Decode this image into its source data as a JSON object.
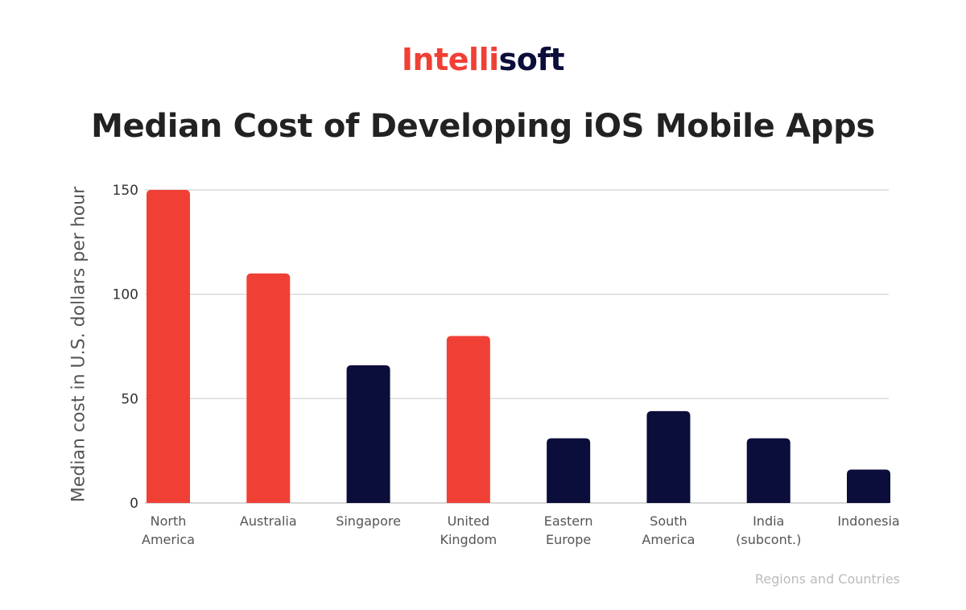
{
  "brand": {
    "part1": "Intelli",
    "part2": "soft",
    "color1": "#f04036",
    "color2": "#0b0d3a"
  },
  "chart_data": {
    "type": "bar",
    "title": "Median Cost of Developing iOS Mobile Apps",
    "xlabel": "Regions and Countries",
    "ylabel": "Median cost in U.S. dollars per hour",
    "ylim": [
      0,
      150
    ],
    "yticks": [
      "0",
      "50",
      "100",
      "150"
    ],
    "grid": true,
    "categories": [
      [
        "North",
        "America"
      ],
      [
        "Australia"
      ],
      [
        "Singapore"
      ],
      [
        "United",
        "Kingdom"
      ],
      [
        "Eastern",
        "Europe"
      ],
      [
        "South",
        "America"
      ],
      [
        "India",
        "(subcont.)"
      ],
      [
        "Indonesia"
      ]
    ],
    "values": [
      150,
      110,
      66,
      80,
      31,
      44,
      31,
      16
    ],
    "bar_colors": [
      "#f04036",
      "#f04036",
      "#0b0d3a",
      "#f04036",
      "#0b0d3a",
      "#0b0d3a",
      "#0b0d3a",
      "#0b0d3a"
    ]
  }
}
